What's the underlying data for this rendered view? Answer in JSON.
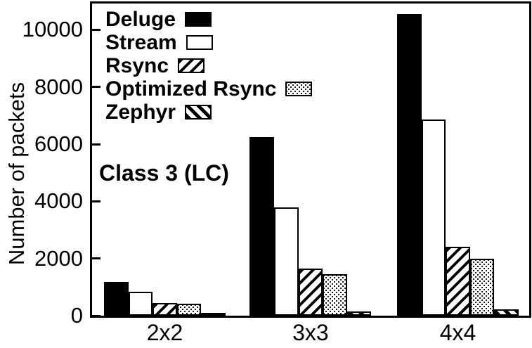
{
  "chart_data": {
    "type": "bar",
    "title": "",
    "annotation": "Class 3 (LC)",
    "xlabel": "",
    "ylabel": "Number of packets",
    "categories": [
      "2x2",
      "3x3",
      "4x4"
    ],
    "series": [
      {
        "name": "Deluge",
        "pattern": "solid-black",
        "values": [
          1180,
          6250,
          10550
        ]
      },
      {
        "name": "Stream",
        "pattern": "white",
        "values": [
          830,
          3780,
          6870
        ]
      },
      {
        "name": "Rsync",
        "pattern": "hatch-forward",
        "values": [
          440,
          1650,
          2400
        ]
      },
      {
        "name": "Optimized Rsync",
        "pattern": "stipple-dots",
        "values": [
          420,
          1450,
          2000
        ]
      },
      {
        "name": "Zephyr",
        "pattern": "hatch-back",
        "values": [
          90,
          140,
          210
        ]
      }
    ],
    "yticks": [
      0,
      2000,
      4000,
      6000,
      8000,
      10000
    ],
    "ylim": [
      0,
      10970
    ],
    "grid": false,
    "legend_position": "top-left-inside",
    "colors": {
      "foreground": "#000000",
      "background": "#ffffff"
    }
  }
}
